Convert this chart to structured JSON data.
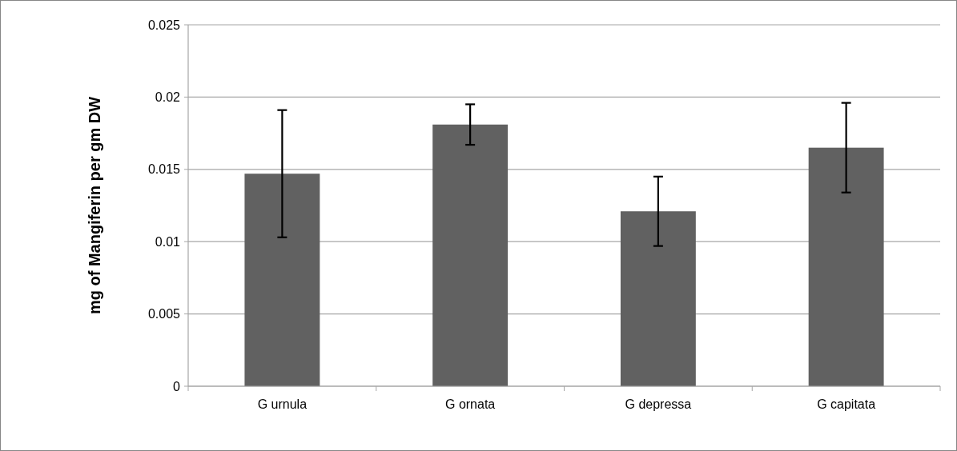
{
  "chart_data": {
    "type": "bar",
    "ylabel": "mg of Mangiferin per gm DW",
    "categories": [
      "G urnula",
      "G ornata",
      "G depressa",
      "G capitata"
    ],
    "values": [
      0.0147,
      0.0181,
      0.0121,
      0.0165
    ],
    "errors": [
      0.0044,
      0.0014,
      0.0024,
      0.0031
    ],
    "color": "#616161",
    "ylim": [
      0,
      0.025
    ],
    "yticks": [
      0,
      0.005,
      0.01,
      0.015,
      0.02,
      0.025
    ],
    "grid": "y"
  }
}
